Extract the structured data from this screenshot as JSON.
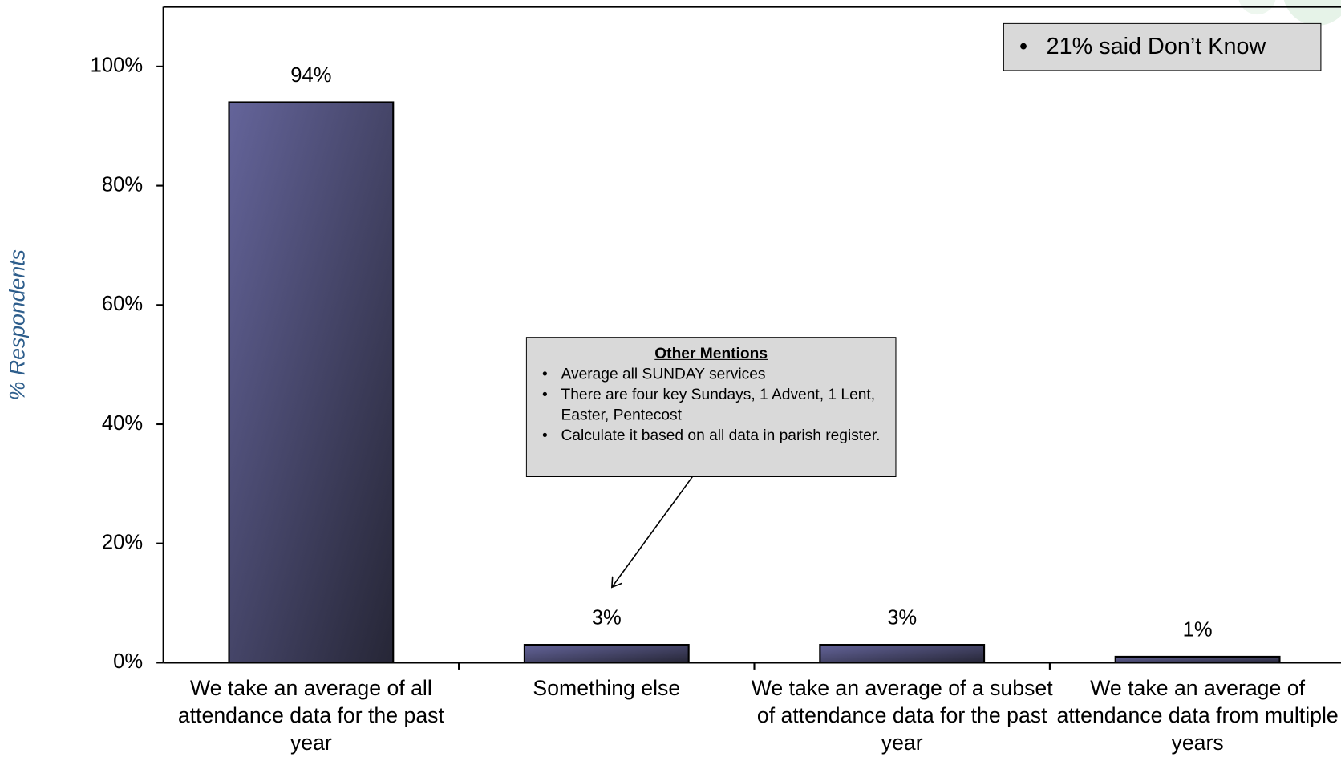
{
  "chart_data": {
    "type": "bar",
    "y_label": "% Respondents",
    "categories": [
      "We take an average of all attendance data for the past year",
      "Something else",
      "We take an average of a subset of attendance data for the past year",
      "We take an average of attendance data from multiple years"
    ],
    "values": [
      94,
      3,
      3,
      1
    ],
    "value_labels": [
      "94%",
      "3%",
      "3%",
      "1%"
    ],
    "color": "#64649a",
    "ylim": [
      0,
      110
    ],
    "yticks": [
      {
        "value": 0,
        "label": "0%"
      },
      {
        "value": 20,
        "label": "20%"
      },
      {
        "value": 40,
        "label": "40%"
      },
      {
        "value": 60,
        "label": "60%"
      },
      {
        "value": 80,
        "label": "80%"
      },
      {
        "value": 100,
        "label": "100%"
      }
    ],
    "grid": false,
    "annotations": {
      "note": "21% said Don’t Know",
      "other_mentions": {
        "title": "Other Mentions",
        "items": [
          "Average all SUNDAY services",
          "There are four key Sundays, 1 Advent, 1 Lent, Easter, Pentecost",
          "Calculate it based on all data in parish register."
        ]
      }
    }
  }
}
